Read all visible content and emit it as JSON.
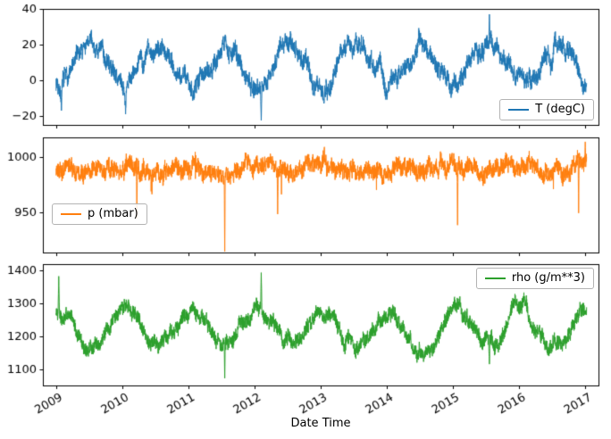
{
  "figure": {
    "background_color": "#ffffff",
    "xlabel": "Date Time",
    "xlim": [
      2008.8,
      2017.2
    ],
    "x_ticks": [
      2009,
      2010,
      2011,
      2012,
      2013,
      2014,
      2015,
      2016,
      2017
    ],
    "x_tick_labels": [
      "2009",
      "2010",
      "2011",
      "2012",
      "2013",
      "2014",
      "2015",
      "2016",
      "2017"
    ],
    "x_tick_rotation_deg": 30,
    "grid": false
  },
  "chart_data": [
    {
      "type": "line",
      "name": "T (degC)",
      "color": "#1f77b4",
      "legend_position": "lower right",
      "ylim": [
        -25,
        40
      ],
      "yticks": [
        -20,
        0,
        20,
        40
      ],
      "ytick_labels": [
        "−20",
        "0",
        "20",
        "40"
      ],
      "x_start": 2009.0,
      "x_end": 2017.02,
      "n_points": 3200,
      "seed": 7,
      "seasonal": {
        "mean": 9.5,
        "amplitude": 10.5,
        "phase": 0.29
      },
      "noise": {
        "slow_step": 3.5,
        "slow_decay": 0.97,
        "fast_amplitude": 4.0,
        "neg_spike_prob": 0,
        "neg_spike_scale": 0
      },
      "events": [
        {
          "x": 2009.08,
          "y": -17,
          "halfwidth": 3
        },
        {
          "x": 2010.05,
          "y": -19,
          "halfwidth": 3
        },
        {
          "x": 2012.1,
          "y": -22.5,
          "halfwidth": 3
        },
        {
          "x": 2013.05,
          "y": -13,
          "halfwidth": 3
        },
        {
          "x": 2015.55,
          "y": 37,
          "halfwidth": 3
        }
      ]
    },
    {
      "type": "line",
      "name": "p (mbar)",
      "color": "#ff7f0e",
      "legend_position": "lower left",
      "ylim": [
        913,
        1018
      ],
      "yticks": [
        950,
        1000
      ],
      "ytick_labels": [
        "950",
        "1000"
      ],
      "x_start": 2009.0,
      "x_end": 2017.02,
      "n_points": 3200,
      "seed": 13,
      "seasonal": {
        "mean": 989,
        "amplitude": 2.5,
        "phase": 0.79
      },
      "noise": {
        "slow_step": 4.0,
        "slow_decay": 0.95,
        "fast_amplitude": 7.0,
        "neg_spike_prob": 0.004,
        "neg_spike_scale": 22
      },
      "events": [
        {
          "x": 2010.22,
          "y": 944,
          "halfwidth": 2
        },
        {
          "x": 2011.55,
          "y": 914,
          "halfwidth": 2
        },
        {
          "x": 2012.35,
          "y": 948,
          "halfwidth": 2
        },
        {
          "x": 2015.07,
          "y": 938,
          "halfwidth": 2
        },
        {
          "x": 2016.9,
          "y": 949,
          "halfwidth": 2
        },
        {
          "x": 2017.0,
          "y": 1014,
          "halfwidth": 2
        }
      ]
    },
    {
      "type": "line",
      "name": "rho (g/m**3)",
      "color": "#2ca02c",
      "legend_position": "upper right",
      "ylim": [
        1050,
        1420
      ],
      "yticks": [
        1100,
        1200,
        1300,
        1400
      ],
      "ytick_labels": [
        "1100",
        "1200",
        "1300",
        "1400"
      ],
      "x_start": 2009.0,
      "x_end": 2017.02,
      "n_points": 3200,
      "seed": 21,
      "seasonal": {
        "mean": 1222,
        "amplitude": -52,
        "phase": 0.29
      },
      "noise": {
        "slow_step": 13,
        "slow_decay": 0.97,
        "fast_amplitude": 20,
        "neg_spike_prob": 0,
        "neg_spike_scale": 0
      },
      "events": [
        {
          "x": 2009.04,
          "y": 1383,
          "halfwidth": 3
        },
        {
          "x": 2011.55,
          "y": 1072,
          "halfwidth": 2
        },
        {
          "x": 2012.1,
          "y": 1394,
          "halfwidth": 3
        },
        {
          "x": 2015.55,
          "y": 1115,
          "halfwidth": 3
        }
      ]
    }
  ]
}
